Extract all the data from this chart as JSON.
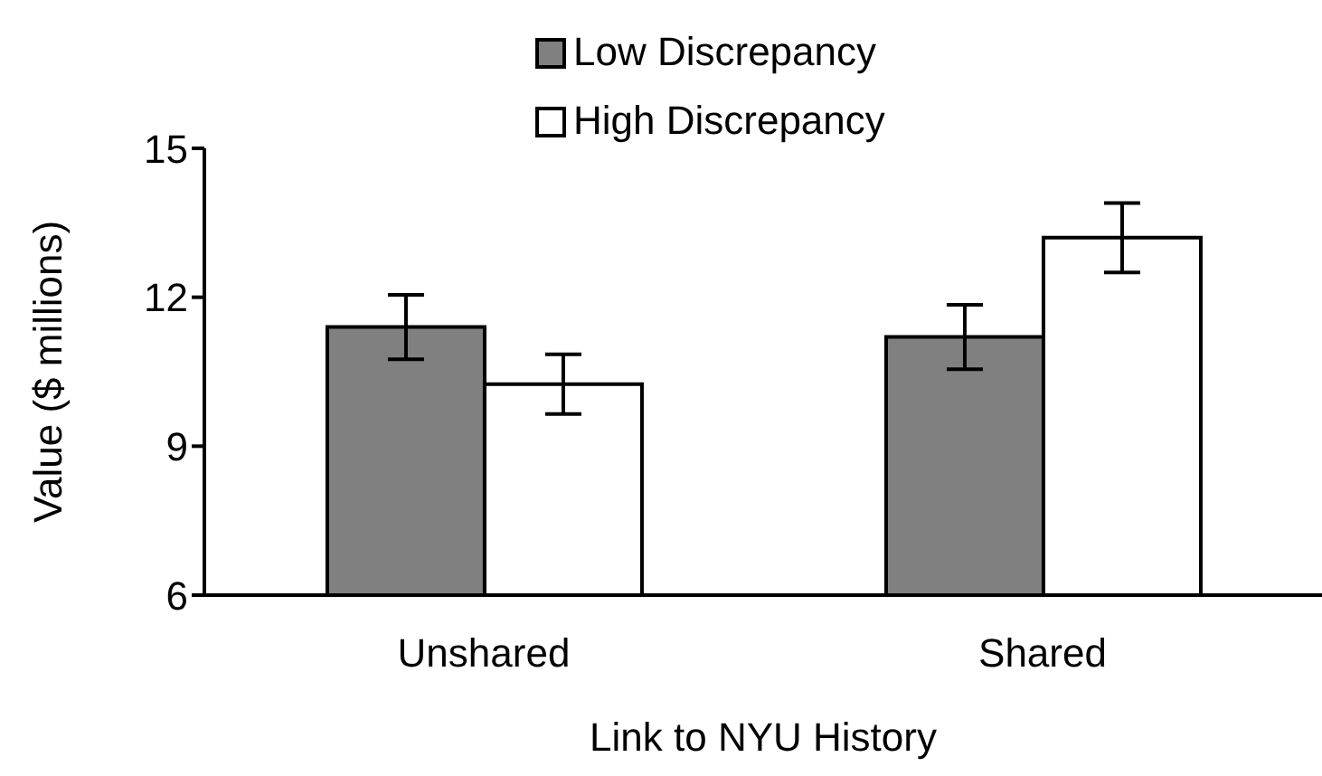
{
  "chart_data": {
    "type": "bar",
    "xlabel": "Link to NYU History",
    "ylabel": "Value ($ millions)",
    "categories": [
      "Unshared",
      "Shared"
    ],
    "series": [
      {
        "name": "Low Discrepancy",
        "color": "#808080",
        "values": [
          11.4,
          11.2
        ],
        "errors": [
          0.65,
          0.65
        ]
      },
      {
        "name": "High Discrepancy",
        "color": "#ffffff",
        "values": [
          10.25,
          13.2
        ],
        "errors": [
          0.6,
          0.7
        ]
      }
    ],
    "ylim": [
      6,
      15
    ],
    "yticks": [
      6,
      9,
      12,
      15
    ],
    "grid": false,
    "legend": "top"
  }
}
